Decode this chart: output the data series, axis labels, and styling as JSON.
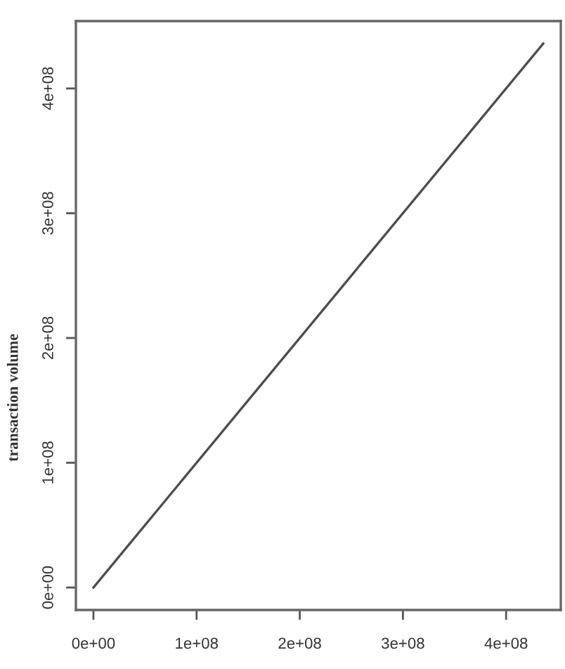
{
  "chart_data": {
    "type": "line",
    "ylabel": "transaction volume",
    "x": [
      0,
      436000000
    ],
    "values": [
      0,
      436000000
    ],
    "color": "#4d4d4d",
    "xlim": [
      -17000000,
      453000000
    ],
    "ylim": [
      -18000000,
      454000000
    ],
    "xticks": [
      {
        "value": 0,
        "label": "0e+00"
      },
      {
        "value": 100000000,
        "label": "1e+08"
      },
      {
        "value": 200000000,
        "label": "2e+08"
      },
      {
        "value": 300000000,
        "label": "3e+08"
      },
      {
        "value": 400000000,
        "label": "4e+08"
      }
    ],
    "yticks": [
      {
        "value": 0,
        "label": "0e+00"
      },
      {
        "value": 100000000,
        "label": "1e+08"
      },
      {
        "value": 200000000,
        "label": "2e+08"
      },
      {
        "value": 300000000,
        "label": "3e+08"
      },
      {
        "value": 400000000,
        "label": "4e+08"
      }
    ],
    "grid": false,
    "marker": "none",
    "line_style": "solid"
  }
}
